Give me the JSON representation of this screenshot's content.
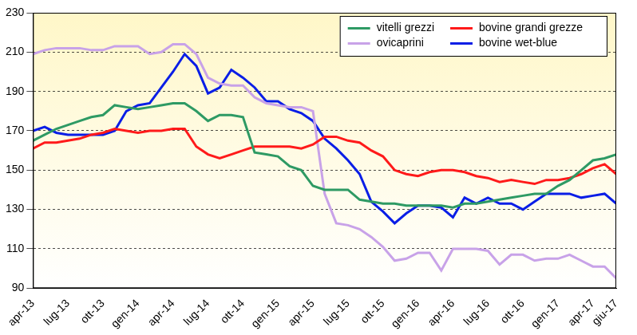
{
  "chart_data": {
    "type": "line",
    "categories": [
      "apr-13",
      null,
      null,
      "lug-13",
      null,
      null,
      "ott-13",
      null,
      null,
      "gen-14",
      null,
      null,
      "apr-14",
      null,
      null,
      "lug-14",
      null,
      null,
      "ott-14",
      null,
      null,
      "gen-15",
      null,
      null,
      "apr-15",
      null,
      null,
      "lug-15",
      null,
      null,
      "ott-15",
      null,
      null,
      "gen-16",
      null,
      null,
      "apr-16",
      null,
      null,
      "lug-16",
      null,
      null,
      "ott-16",
      null,
      null,
      "gen-17",
      null,
      null,
      "apr-17",
      null,
      "giu-17"
    ],
    "series": [
      {
        "name": "vitelli grezzi",
        "color": "#2e9a64",
        "values": [
          165,
          168,
          171,
          173,
          175,
          177,
          178,
          183,
          182,
          181,
          182,
          183,
          184,
          184,
          180,
          175,
          178,
          178,
          177,
          159,
          158,
          157,
          152,
          150,
          142,
          140,
          140,
          140,
          135,
          134,
          133,
          133,
          132,
          132,
          132,
          132,
          131,
          133,
          133,
          134,
          135,
          136,
          137,
          138,
          138,
          142,
          145,
          150,
          155,
          156,
          158
        ]
      },
      {
        "name": "bovine grandi grezze",
        "color": "#ff1a1a",
        "values": [
          161,
          164,
          164,
          165,
          166,
          168,
          169,
          171,
          170,
          169,
          170,
          170,
          171,
          171,
          162,
          158,
          156,
          158,
          160,
          162,
          162,
          162,
          162,
          161,
          163,
          167,
          167,
          165,
          164,
          160,
          157,
          150,
          148,
          147,
          149,
          150,
          150,
          149,
          147,
          146,
          144,
          145,
          144,
          143,
          145,
          145,
          146,
          148,
          151,
          153,
          148
        ]
      },
      {
        "name": "ovicaprini",
        "color": "#c8a2e8",
        "values": [
          209,
          211,
          212,
          212,
          212,
          211,
          211,
          213,
          213,
          213,
          209,
          210,
          214,
          214,
          209,
          197,
          194,
          193,
          193,
          187,
          184,
          183,
          182,
          182,
          180,
          138,
          123,
          122,
          120,
          116,
          111,
          104,
          105,
          108,
          108,
          99,
          110,
          110,
          110,
          109,
          102,
          107,
          107,
          104,
          105,
          105,
          107,
          104,
          101,
          101,
          95
        ]
      },
      {
        "name": "bovine wet-blue",
        "color": "#0a1ee6",
        "values": [
          170,
          172,
          169,
          168,
          168,
          168,
          168,
          170,
          180,
          183,
          184,
          192,
          200,
          209,
          203,
          189,
          192,
          201,
          197,
          192,
          185,
          185,
          181,
          179,
          175,
          166,
          161,
          155,
          148,
          134,
          129,
          123,
          128,
          132,
          132,
          131,
          126,
          136,
          133,
          136,
          133,
          133,
          130,
          134,
          138,
          138,
          138,
          136,
          137,
          138,
          133
        ]
      }
    ],
    "ylim": [
      90,
      230
    ],
    "yticks": [
      90,
      110,
      130,
      150,
      170,
      190,
      210,
      230
    ],
    "grid": true,
    "legend": "upper right"
  }
}
